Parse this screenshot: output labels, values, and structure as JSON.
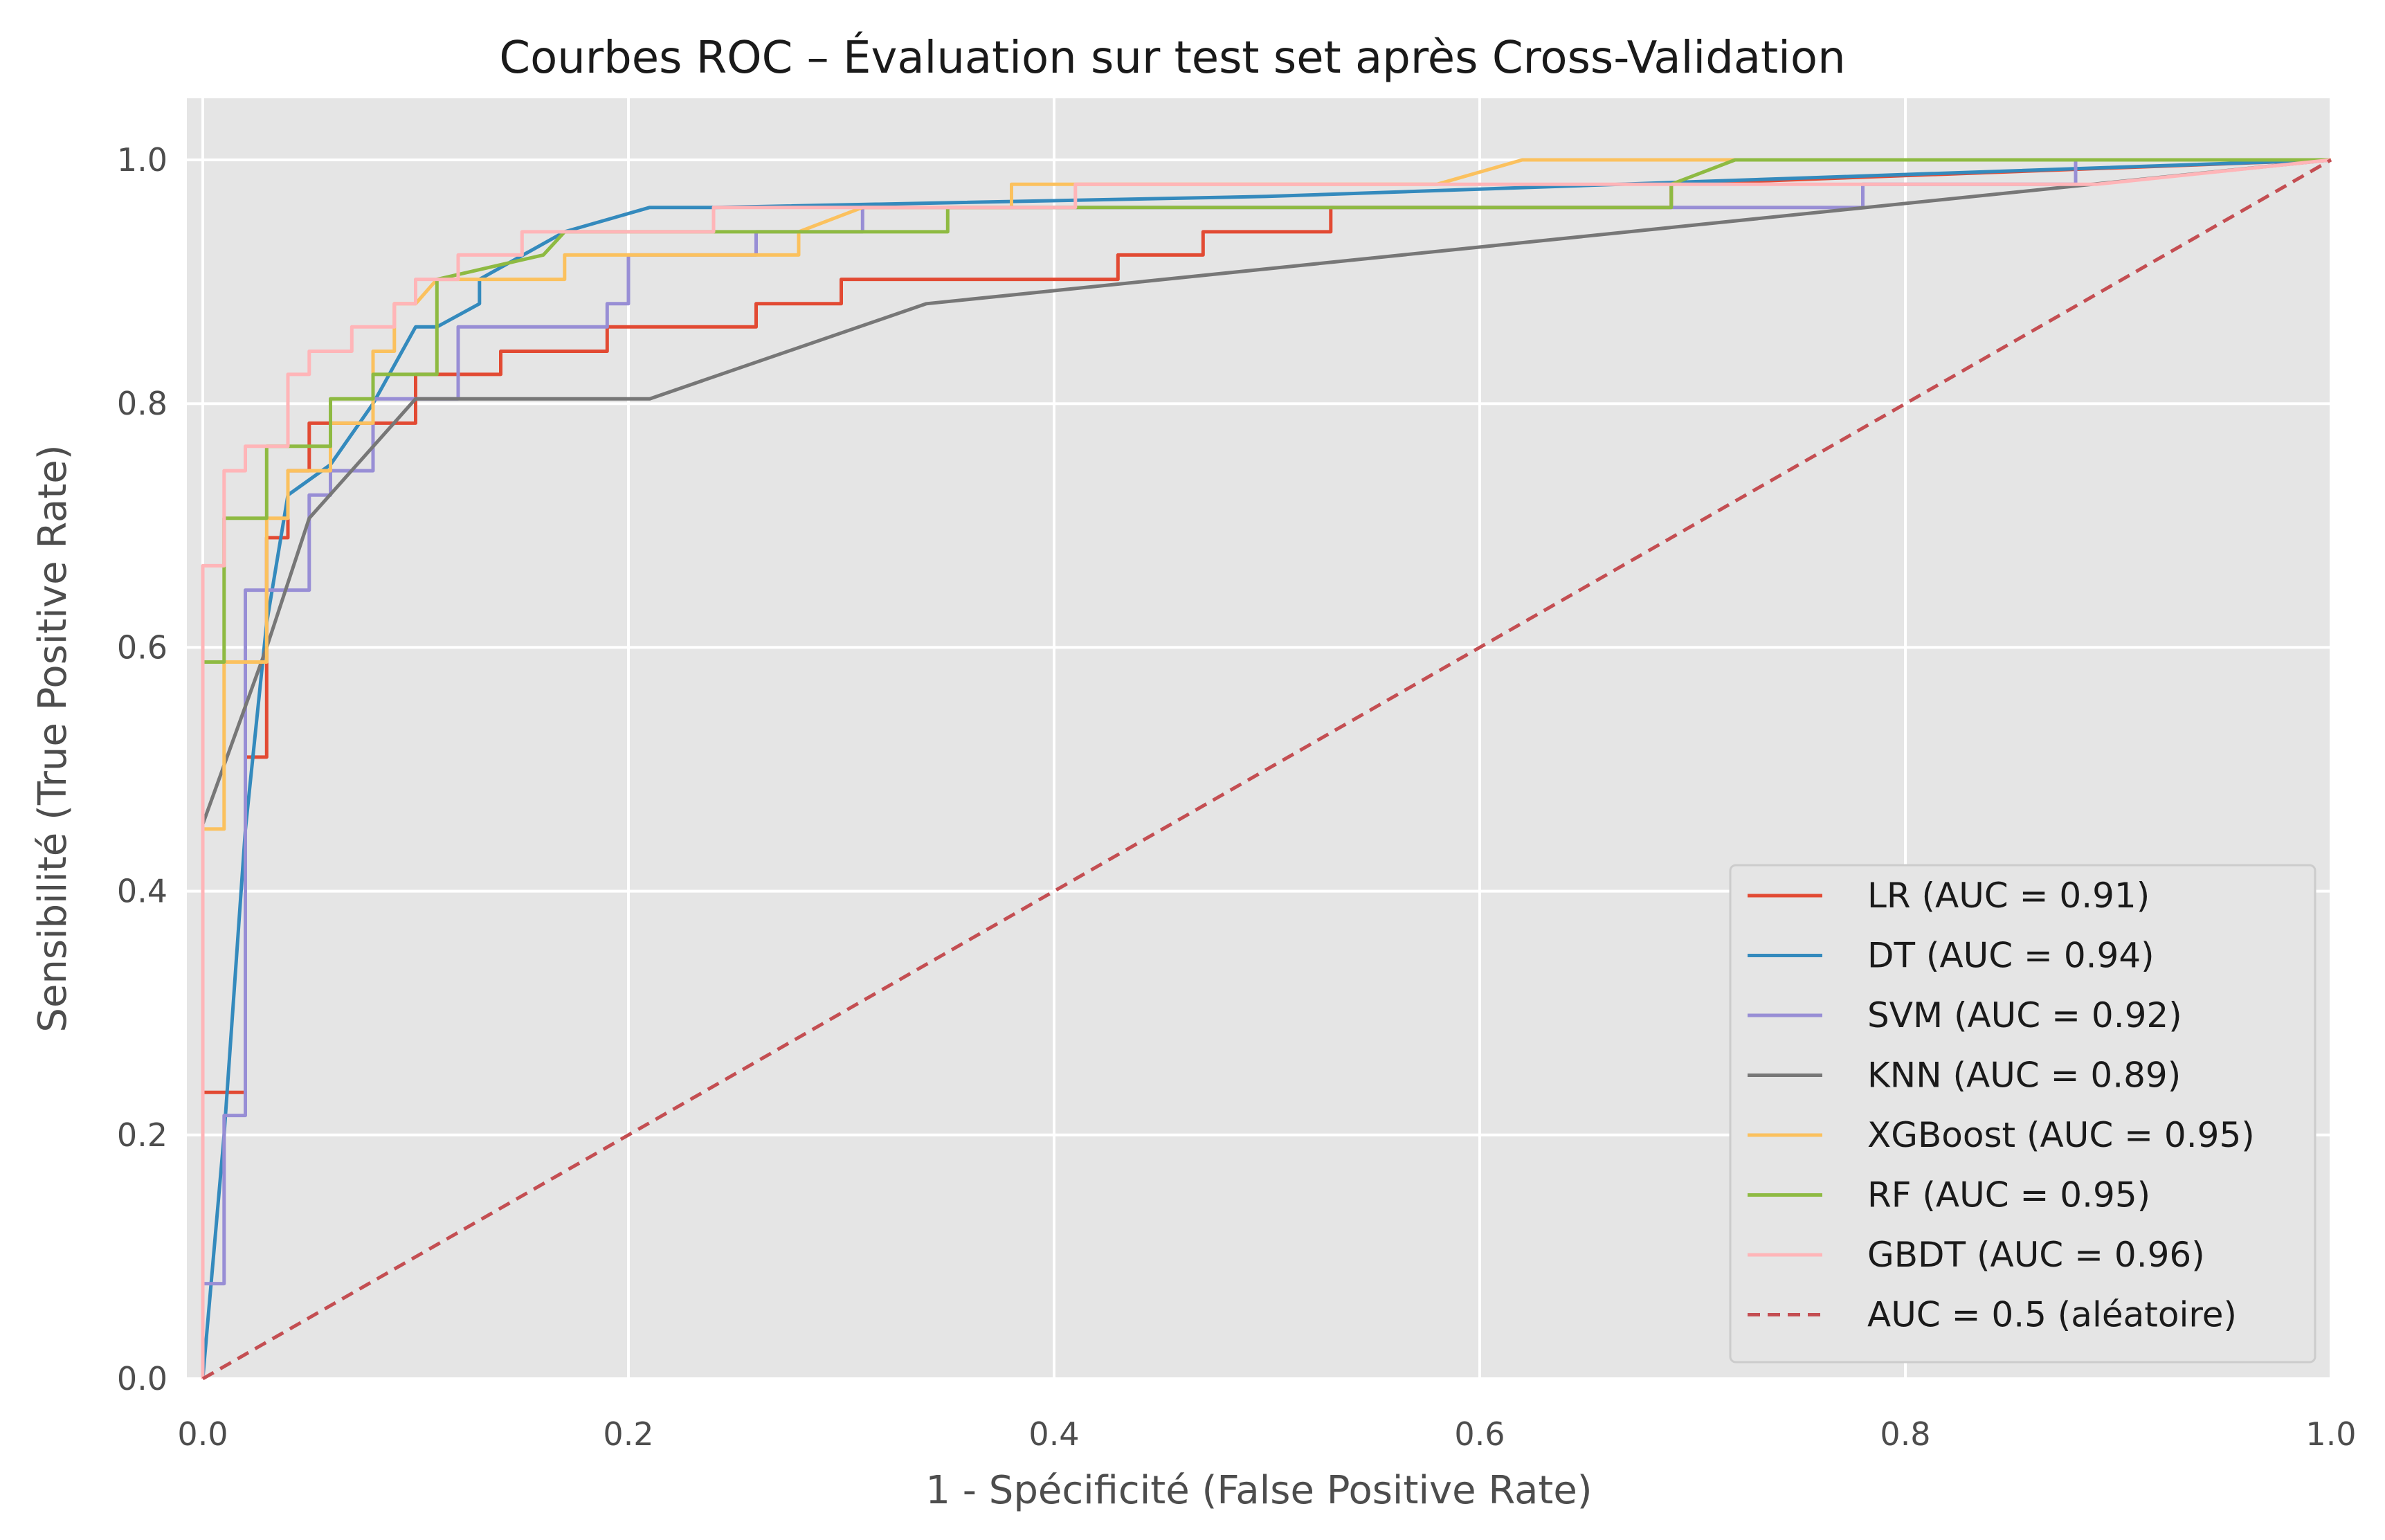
{
  "chart_data": {
    "type": "line",
    "title": "Courbes ROC – Évaluation sur test set après Cross-Validation",
    "xlabel": "1 - Spécificité (False Positive Rate)",
    "ylabel": "Sensibilité (True Positive Rate)",
    "xlim": [
      0.0,
      1.0
    ],
    "ylim": [
      0.0,
      1.05
    ],
    "x_ticks": [
      "0.0",
      "0.2",
      "0.4",
      "0.6",
      "0.8",
      "1.0"
    ],
    "y_ticks": [
      "0.0",
      "0.2",
      "0.4",
      "0.6",
      "0.8",
      "1.0"
    ],
    "grid": true,
    "background": "#e5e5e5",
    "legend_position": "lower-right",
    "series": [
      {
        "name": "LR (AUC = 0.91)",
        "color": "#e24a33",
        "style": "solid",
        "points": [
          [
            0,
            0
          ],
          [
            0,
            0.235
          ],
          [
            0.02,
            0.235
          ],
          [
            0.02,
            0.51
          ],
          [
            0.03,
            0.51
          ],
          [
            0.03,
            0.69
          ],
          [
            0.04,
            0.69
          ],
          [
            0.04,
            0.745
          ],
          [
            0.05,
            0.745
          ],
          [
            0.05,
            0.784
          ],
          [
            0.08,
            0.784
          ],
          [
            0.08,
            0.784
          ],
          [
            0.1,
            0.784
          ],
          [
            0.1,
            0.824
          ],
          [
            0.12,
            0.824
          ],
          [
            0.14,
            0.824
          ],
          [
            0.14,
            0.843
          ],
          [
            0.19,
            0.843
          ],
          [
            0.19,
            0.863
          ],
          [
            0.26,
            0.863
          ],
          [
            0.26,
            0.882
          ],
          [
            0.3,
            0.882
          ],
          [
            0.3,
            0.902
          ],
          [
            0.43,
            0.902
          ],
          [
            0.43,
            0.922
          ],
          [
            0.47,
            0.922
          ],
          [
            0.47,
            0.941
          ],
          [
            0.53,
            0.941
          ],
          [
            0.53,
            0.961
          ],
          [
            0.69,
            0.961
          ],
          [
            0.69,
            0.98
          ],
          [
            0.69,
            0.98
          ],
          [
            1.0,
            1.0
          ]
        ]
      },
      {
        "name": "DT (AUC = 0.94)",
        "color": "#348abd",
        "style": "solid",
        "points": [
          [
            0,
            0
          ],
          [
            0.01,
            0.2
          ],
          [
            0.02,
            0.45
          ],
          [
            0.03,
            0.62
          ],
          [
            0.04,
            0.725
          ],
          [
            0.06,
            0.75
          ],
          [
            0.08,
            0.8
          ],
          [
            0.1,
            0.863
          ],
          [
            0.11,
            0.863
          ],
          [
            0.13,
            0.882
          ],
          [
            0.13,
            0.902
          ],
          [
            0.17,
            0.941
          ],
          [
            0.21,
            0.961
          ],
          [
            0.24,
            0.961
          ],
          [
            0.24,
            0.961
          ],
          [
            0.5,
            0.97
          ],
          [
            1.0,
            1.0
          ]
        ]
      },
      {
        "name": "SVM (AUC = 0.92)",
        "color": "#988ed5",
        "style": "solid",
        "points": [
          [
            0,
            0
          ],
          [
            0,
            0.078
          ],
          [
            0.01,
            0.078
          ],
          [
            0.01,
            0.216
          ],
          [
            0.02,
            0.216
          ],
          [
            0.02,
            0.647
          ],
          [
            0.05,
            0.647
          ],
          [
            0.05,
            0.725
          ],
          [
            0.06,
            0.725
          ],
          [
            0.06,
            0.745
          ],
          [
            0.08,
            0.745
          ],
          [
            0.08,
            0.804
          ],
          [
            0.12,
            0.804
          ],
          [
            0.12,
            0.863
          ],
          [
            0.19,
            0.863
          ],
          [
            0.19,
            0.882
          ],
          [
            0.2,
            0.882
          ],
          [
            0.2,
            0.922
          ],
          [
            0.26,
            0.922
          ],
          [
            0.26,
            0.941
          ],
          [
            0.31,
            0.941
          ],
          [
            0.31,
            0.961
          ],
          [
            0.78,
            0.961
          ],
          [
            0.78,
            0.98
          ],
          [
            0.88,
            0.98
          ],
          [
            0.88,
            1.0
          ],
          [
            1.0,
            1.0
          ]
        ]
      },
      {
        "name": "KNN (AUC = 0.89)",
        "color": "#777777",
        "style": "solid",
        "points": [
          [
            0,
            0.455
          ],
          [
            0.03,
            0.6
          ],
          [
            0.05,
            0.706
          ],
          [
            0.1,
            0.804
          ],
          [
            0.21,
            0.804
          ],
          [
            0.34,
            0.882
          ],
          [
            1.0,
            1.0
          ]
        ]
      },
      {
        "name": "XGBoost (AUC = 0.95)",
        "color": "#fbc15e",
        "style": "solid",
        "points": [
          [
            0,
            0
          ],
          [
            0,
            0.451
          ],
          [
            0.01,
            0.451
          ],
          [
            0.01,
            0.588
          ],
          [
            0.03,
            0.588
          ],
          [
            0.03,
            0.706
          ],
          [
            0.04,
            0.706
          ],
          [
            0.04,
            0.745
          ],
          [
            0.06,
            0.745
          ],
          [
            0.06,
            0.784
          ],
          [
            0.08,
            0.784
          ],
          [
            0.08,
            0.843
          ],
          [
            0.09,
            0.843
          ],
          [
            0.09,
            0.882
          ],
          [
            0.1,
            0.882
          ],
          [
            0.11,
            0.902
          ],
          [
            0.17,
            0.902
          ],
          [
            0.17,
            0.922
          ],
          [
            0.28,
            0.922
          ],
          [
            0.28,
            0.941
          ],
          [
            0.31,
            0.961
          ],
          [
            0.38,
            0.961
          ],
          [
            0.38,
            0.98
          ],
          [
            0.58,
            0.98
          ],
          [
            0.62,
            1.0
          ],
          [
            1.0,
            1.0
          ]
        ]
      },
      {
        "name": "RF (AUC = 0.95)",
        "color": "#8eba42",
        "style": "solid",
        "points": [
          [
            0,
            0
          ],
          [
            0,
            0.588
          ],
          [
            0.01,
            0.588
          ],
          [
            0.01,
            0.706
          ],
          [
            0.03,
            0.706
          ],
          [
            0.03,
            0.765
          ],
          [
            0.06,
            0.765
          ],
          [
            0.06,
            0.804
          ],
          [
            0.08,
            0.804
          ],
          [
            0.08,
            0.824
          ],
          [
            0.11,
            0.824
          ],
          [
            0.11,
            0.902
          ],
          [
            0.16,
            0.922
          ],
          [
            0.17,
            0.941
          ],
          [
            0.24,
            0.941
          ],
          [
            0.35,
            0.941
          ],
          [
            0.35,
            0.961
          ],
          [
            0.69,
            0.961
          ],
          [
            0.69,
            0.98
          ],
          [
            0.72,
            1.0
          ],
          [
            0.89,
            1.0
          ],
          [
            1.0,
            1.0
          ]
        ]
      },
      {
        "name": "GBDT (AUC = 0.96)",
        "color": "#ffb5b8",
        "style": "solid",
        "points": [
          [
            0,
            0
          ],
          [
            0,
            0.667
          ],
          [
            0.01,
            0.667
          ],
          [
            0.01,
            0.745
          ],
          [
            0.02,
            0.745
          ],
          [
            0.02,
            0.765
          ],
          [
            0.04,
            0.765
          ],
          [
            0.04,
            0.824
          ],
          [
            0.05,
            0.824
          ],
          [
            0.05,
            0.843
          ],
          [
            0.07,
            0.843
          ],
          [
            0.07,
            0.863
          ],
          [
            0.09,
            0.863
          ],
          [
            0.09,
            0.882
          ],
          [
            0.1,
            0.882
          ],
          [
            0.1,
            0.902
          ],
          [
            0.12,
            0.902
          ],
          [
            0.12,
            0.922
          ],
          [
            0.15,
            0.922
          ],
          [
            0.15,
            0.941
          ],
          [
            0.24,
            0.941
          ],
          [
            0.24,
            0.961
          ],
          [
            0.41,
            0.961
          ],
          [
            0.41,
            0.98
          ],
          [
            0.89,
            0.98
          ],
          [
            1.0,
            1.0
          ]
        ]
      },
      {
        "name": "AUC = 0.5 (aléatoire)",
        "color": "#c44e52",
        "style": "dashed",
        "points": [
          [
            0,
            0
          ],
          [
            1.0,
            1.0
          ]
        ]
      }
    ]
  }
}
